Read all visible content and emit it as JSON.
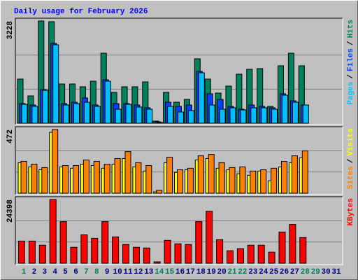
{
  "title": "Daily usage for February 2026",
  "legend_separator": "/",
  "chart_data": [
    {
      "type": "bar",
      "ylim": [
        0,
        3228
      ],
      "yticks": [
        3228
      ],
      "series": [
        {
          "name": "Hits",
          "color": "#00805c",
          "values": [
            1393,
            862,
            3228,
            3206,
            1238,
            1238,
            1150,
            1327,
            2211,
            973,
            1150,
            1150,
            1304,
            66,
            973,
            663,
            752,
            2034,
            1393,
            951,
            1172,
            1548,
            1702,
            1725,
            531,
            1813,
            2211,
            1813,
            null,
            null,
            null
          ]
        },
        {
          "name": "Files",
          "color": "#0040ff",
          "values": [
            619,
            575,
            1061,
            2520,
            619,
            663,
            796,
            575,
            1371,
            619,
            619,
            575,
            486,
            44,
            663,
            531,
            575,
            1636,
            929,
            752,
            531,
            442,
            575,
            531,
            486,
            929,
            708,
            575,
            null,
            null,
            null
          ]
        },
        {
          "name": "Pages",
          "color": "#00c0ff",
          "values": [
            597,
            531,
            1039,
            2476,
            575,
            619,
            663,
            531,
            1327,
            442,
            597,
            509,
            442,
            22,
            531,
            354,
            398,
            1592,
            575,
            442,
            486,
            420,
            486,
            486,
            442,
            884,
            663,
            575,
            null,
            null,
            null
          ]
        }
      ]
    },
    {
      "type": "bar",
      "ylim": [
        0,
        472
      ],
      "yticks": [
        472
      ],
      "series": [
        {
          "name": "Visits",
          "color": "#ffff00",
          "values": [
            226,
            195,
            174,
            451,
            195,
            185,
            215,
            205,
            185,
            215,
            257,
            195,
            164,
            10,
            226,
            154,
            174,
            246,
            257,
            185,
            174,
            144,
            133,
            164,
            92,
            195,
            226,
            262,
            null,
            null,
            null
          ]
        },
        {
          "name": "Sites",
          "color": "#ff8000",
          "values": [
            236,
            215,
            190,
            472,
            205,
            205,
            246,
            236,
            215,
            257,
            308,
            226,
            205,
            21,
            267,
            174,
            185,
            277,
            287,
            226,
            190,
            195,
            164,
            174,
            185,
            236,
            277,
            313,
            null,
            null,
            null
          ]
        }
      ]
    },
    {
      "type": "bar",
      "ylim": [
        0,
        24398
      ],
      "yticks": [
        24398
      ],
      "series": [
        {
          "name": "KBytes",
          "color": "#ff0000",
          "values": [
            8486,
            8486,
            6895,
            24398,
            15912,
            6100,
            10873,
            9547,
            15912,
            10077,
            7160,
            6100,
            5834,
            530,
            8751,
            7425,
            7160,
            15912,
            19890,
            9017,
            4774,
            5569,
            6895,
            6895,
            4242,
            11934,
            14851,
            9812,
            null,
            null,
            null
          ]
        }
      ],
      "categories": [
        "1",
        "2",
        "3",
        "4",
        "5",
        "6",
        "7",
        "8",
        "9",
        "10",
        "11",
        "12",
        "13",
        "14",
        "15",
        "16",
        "17",
        "18",
        "19",
        "20",
        "21",
        "22",
        "23",
        "24",
        "25",
        "26",
        "27",
        "28",
        "29",
        "30",
        "31"
      ],
      "category_colors": [
        "#00805c",
        "#000080",
        "#000080",
        "#000080",
        "#000080",
        "#000080",
        "#00805c",
        "#00805c",
        "#000080",
        "#000080",
        "#000080",
        "#000080",
        "#000080",
        "#00805c",
        "#00805c",
        "#000080",
        "#000080",
        "#000080",
        "#000080",
        "#000080",
        "#00805c",
        "#00805c",
        "#000080",
        "#000080",
        "#000080",
        "#000080",
        "#000080",
        "#00805c",
        "#00805c",
        "#000080",
        "#000080"
      ]
    }
  ]
}
